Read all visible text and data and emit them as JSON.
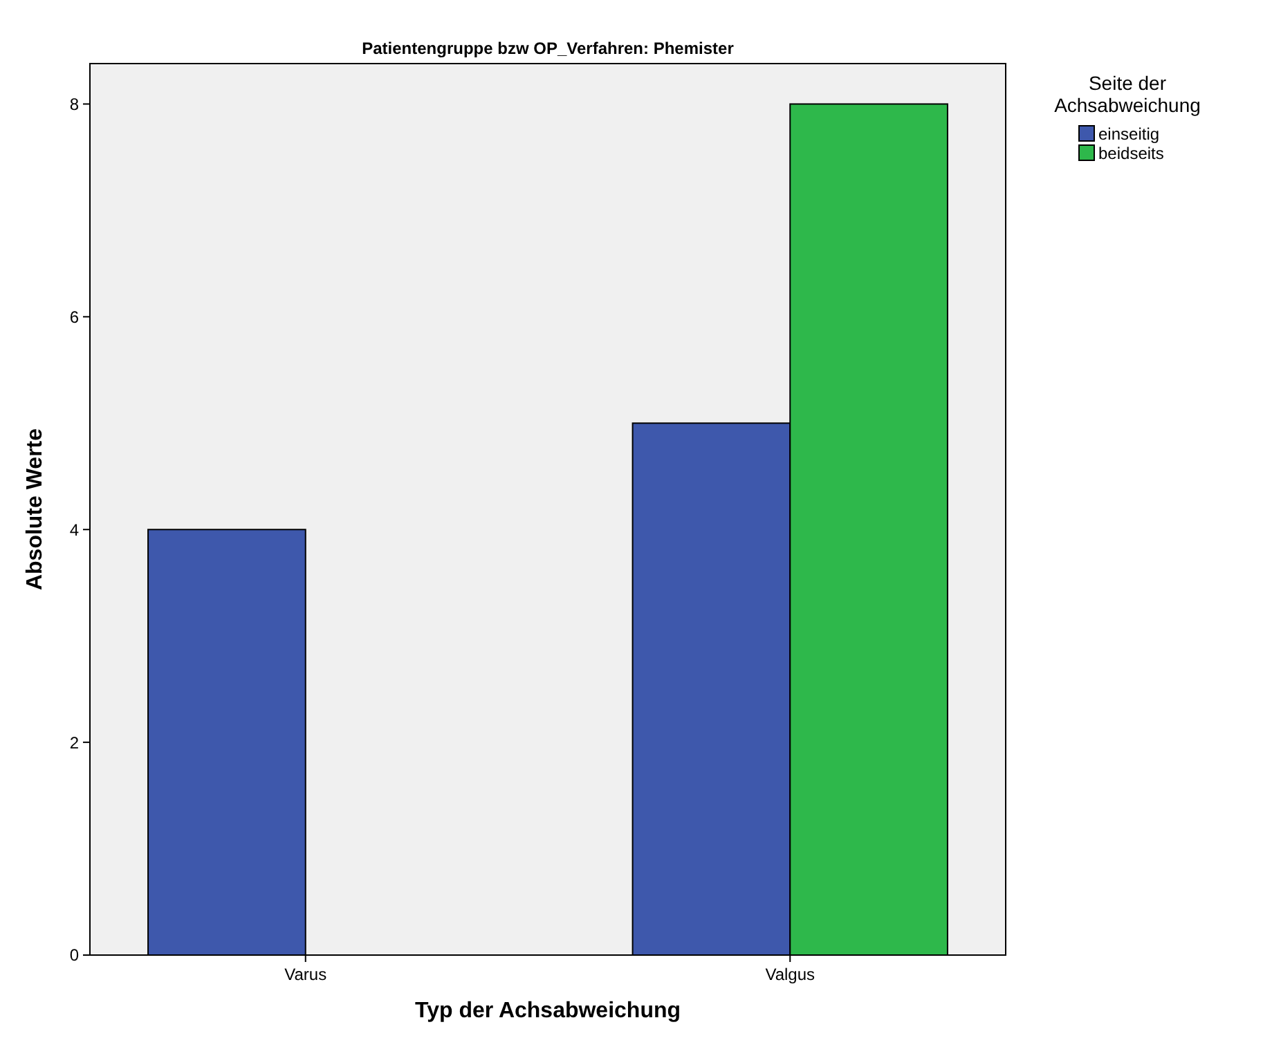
{
  "chart_data": {
    "type": "bar",
    "title": "Patientengruppe bzw OP_Verfahren: Phemister",
    "xlabel": "Typ der Achsabweichung",
    "ylabel": "Absolute Werte",
    "legend_title": "Seite der Achsabweichung",
    "categories": [
      "Varus",
      "Valgus"
    ],
    "series": [
      {
        "name": "einseitig",
        "color": "#3e58ac",
        "values": [
          4,
          5
        ]
      },
      {
        "name": "beidseits",
        "color": "#2eb84b",
        "values": [
          0,
          8
        ]
      }
    ],
    "ylim": [
      0,
      8.38
    ],
    "yticks": [
      0,
      2,
      4,
      6,
      8
    ],
    "grid": false,
    "legend": "right"
  }
}
